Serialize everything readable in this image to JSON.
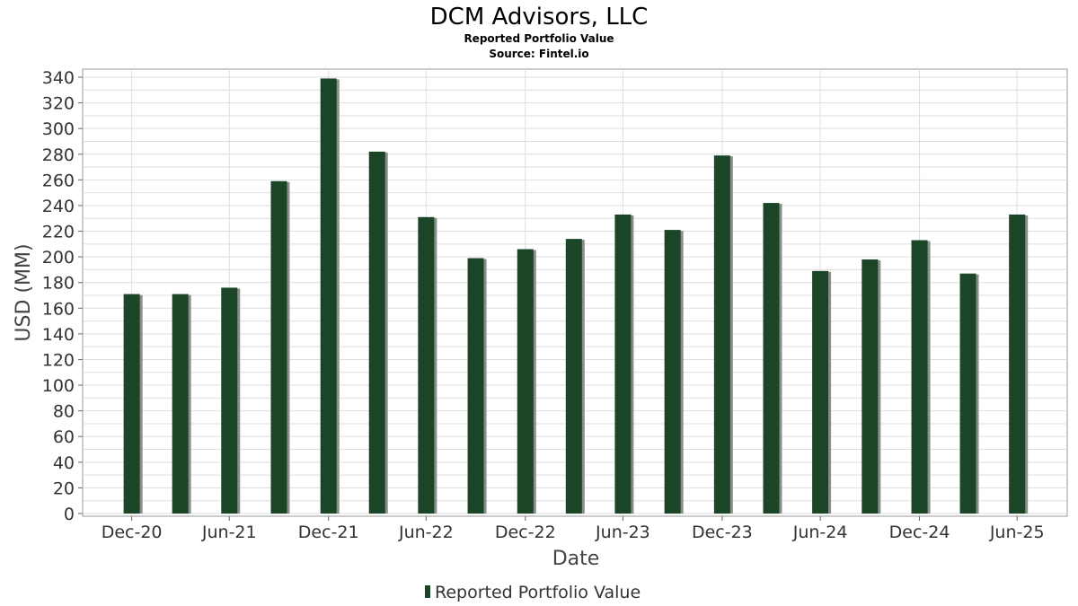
{
  "chart_data": {
    "type": "bar",
    "title": "DCM Advisors, LLC",
    "subtitle": "Reported Portfolio Value",
    "source": "Source: Fintel.io",
    "xlabel": "Date",
    "ylabel": "USD (MM)",
    "ylim": [
      0,
      350
    ],
    "yticks": [
      0,
      20,
      40,
      60,
      80,
      100,
      120,
      140,
      160,
      180,
      200,
      220,
      240,
      260,
      280,
      300,
      320,
      340
    ],
    "xlim": [
      "2020-10-01",
      "2025-10-01"
    ],
    "xticks": [
      {
        "date": "2020-12-31",
        "label": "Dec-20"
      },
      {
        "date": "2021-06-30",
        "label": "Jun-21"
      },
      {
        "date": "2021-12-31",
        "label": "Dec-21"
      },
      {
        "date": "2022-06-30",
        "label": "Jun-22"
      },
      {
        "date": "2022-12-31",
        "label": "Dec-22"
      },
      {
        "date": "2023-06-30",
        "label": "Jun-23"
      },
      {
        "date": "2023-12-31",
        "label": "Dec-23"
      },
      {
        "date": "2024-06-30",
        "label": "Jun-24"
      },
      {
        "date": "2024-12-31",
        "label": "Dec-24"
      },
      {
        "date": "2025-06-30",
        "label": "Jun-25"
      }
    ],
    "grid": true,
    "legend_position": "bottom-center",
    "series": [
      {
        "name": "Reported Portfolio Value",
        "color": "#1a4527",
        "x": [
          "2020-12-31",
          "2021-03-31",
          "2021-06-30",
          "2021-09-30",
          "2021-12-31",
          "2022-03-31",
          "2022-06-30",
          "2022-09-30",
          "2022-12-31",
          "2023-03-31",
          "2023-06-30",
          "2023-09-30",
          "2023-12-31",
          "2024-03-31",
          "2024-06-30",
          "2024-09-30",
          "2024-12-31",
          "2025-03-31",
          "2025-06-30"
        ],
        "values": [
          171,
          171,
          176,
          259,
          339,
          282,
          231,
          199,
          206,
          214,
          233,
          221,
          279,
          242,
          189,
          198,
          213,
          187,
          233
        ]
      }
    ]
  }
}
